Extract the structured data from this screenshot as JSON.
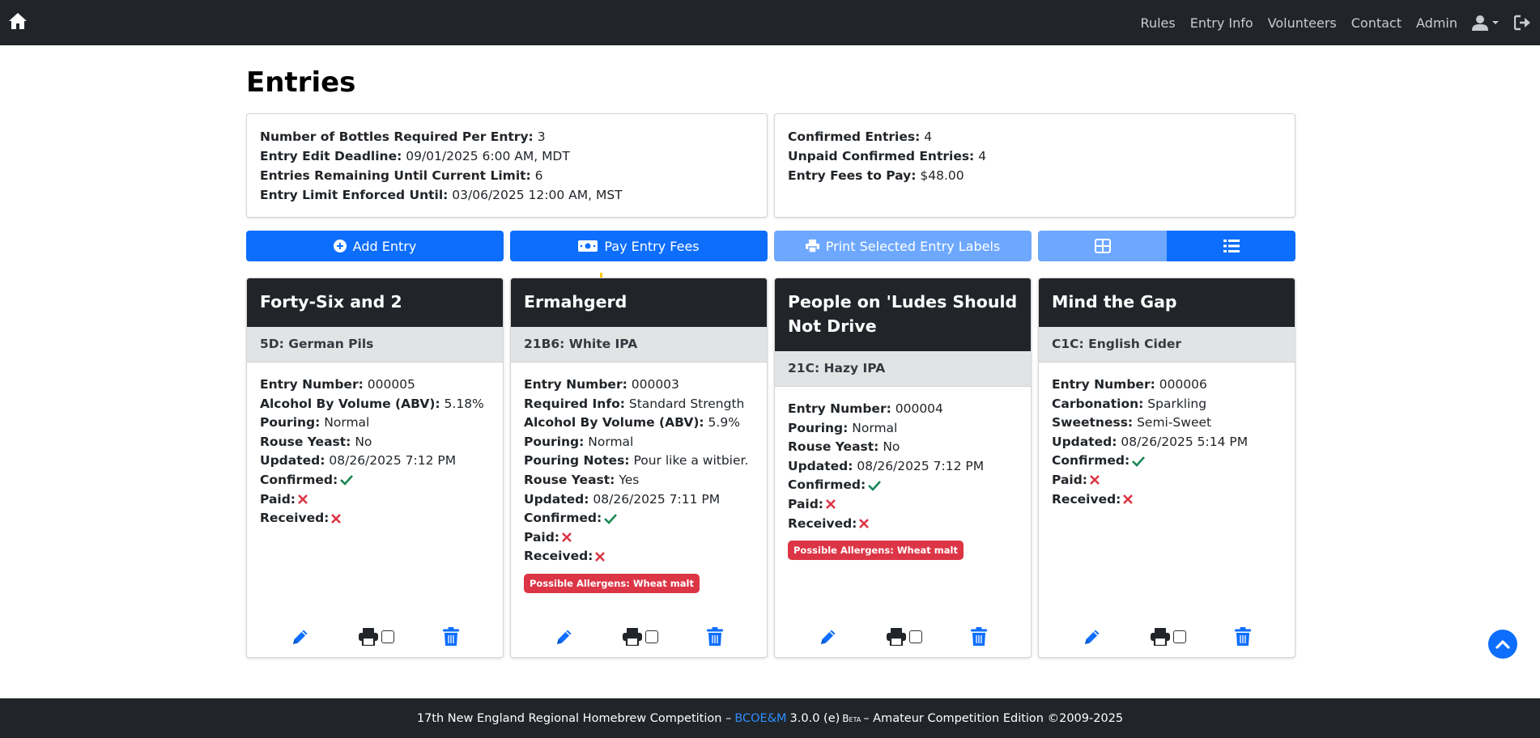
{
  "nav": {
    "links": [
      "Rules",
      "Entry Info",
      "Volunteers",
      "Contact",
      "Admin"
    ]
  },
  "page": {
    "title": "Entries"
  },
  "info_left": [
    {
      "label": "Number of Bottles Required Per Entry:",
      "value": "3"
    },
    {
      "label": "Entry Edit Deadline:",
      "value": "09/01/2025 6:00 AM, MDT"
    },
    {
      "label": "Entries Remaining Until Current Limit:",
      "value": "6"
    },
    {
      "label": "Entry Limit Enforced Until:",
      "value": "03/06/2025 12:00 AM, MST"
    }
  ],
  "info_right": [
    {
      "label": "Confirmed Entries:",
      "value": "4"
    },
    {
      "label": "Unpaid Confirmed Entries:",
      "value": "4"
    },
    {
      "label": "Entry Fees to Pay:",
      "value": "$48.00"
    }
  ],
  "actions": {
    "add_entry": "Add Entry",
    "pay_fees": "Pay Entry Fees",
    "print_labels": "Print Selected Entry Labels"
  },
  "cards": [
    {
      "name": "Forty-Six and 2",
      "style": "5D: German Pils",
      "fields": [
        {
          "label": "Entry Number:",
          "value": "000005"
        },
        {
          "label": "Alcohol By Volume (ABV):",
          "value": "5.18%"
        },
        {
          "label": "Pouring:",
          "value": "Normal"
        },
        {
          "label": "Rouse Yeast:",
          "value": "No"
        },
        {
          "label": "Updated:",
          "value": "08/26/2025 7:12 PM"
        },
        {
          "label": "Confirmed:",
          "status": "yes"
        },
        {
          "label": "Paid:",
          "status": "no"
        },
        {
          "label": "Received:",
          "status": "no"
        }
      ],
      "allergen": ""
    },
    {
      "name": "Ermahgerd",
      "style": "21B6: White IPA",
      "fields": [
        {
          "label": "Entry Number:",
          "value": "000003"
        },
        {
          "label": "Required Info:",
          "value": "Standard Strength"
        },
        {
          "label": "Alcohol By Volume (ABV):",
          "value": "5.9%"
        },
        {
          "label": "Pouring:",
          "value": "Normal"
        },
        {
          "label": "Pouring Notes:",
          "value": "Pour like a witbier."
        },
        {
          "label": "Rouse Yeast:",
          "value": "Yes"
        },
        {
          "label": "Updated:",
          "value": "08/26/2025 7:11 PM"
        },
        {
          "label": "Confirmed:",
          "status": "yes"
        },
        {
          "label": "Paid:",
          "status": "no"
        },
        {
          "label": "Received:",
          "status": "no"
        }
      ],
      "allergen": "Possible Allergens: Wheat malt"
    },
    {
      "name": "People on 'Ludes Should Not Drive",
      "style": "21C: Hazy IPA",
      "fields": [
        {
          "label": "Entry Number:",
          "value": "000004"
        },
        {
          "label": "Pouring:",
          "value": "Normal"
        },
        {
          "label": "Rouse Yeast:",
          "value": "No"
        },
        {
          "label": "Updated:",
          "value": "08/26/2025 7:12 PM"
        },
        {
          "label": "Confirmed:",
          "status": "yes"
        },
        {
          "label": "Paid:",
          "status": "no"
        },
        {
          "label": "Received:",
          "status": "no"
        }
      ],
      "allergen": "Possible Allergens: Wheat malt"
    },
    {
      "name": "Mind the Gap",
      "style": "C1C: English Cider",
      "fields": [
        {
          "label": "Entry Number:",
          "value": "000006"
        },
        {
          "label": "Carbonation:",
          "value": "Sparkling"
        },
        {
          "label": "Sweetness:",
          "value": "Semi-Sweet"
        },
        {
          "label": "Updated:",
          "value": "08/26/2025 5:14 PM"
        },
        {
          "label": "Confirmed:",
          "status": "yes"
        },
        {
          "label": "Paid:",
          "status": "no"
        },
        {
          "label": "Received:",
          "status": "no"
        }
      ],
      "allergen": ""
    }
  ],
  "footer": {
    "prefix": "17th New England Regional Homebrew Competition –",
    "link": "BCOE&M",
    "version": "3.0.0 (e)",
    "beta": "Beta",
    "suffix": "– Amateur Competition Edition ©2009-2025"
  },
  "colors": {
    "navbar": "#212529",
    "primary": "#0d6efd",
    "primary_light": "#6ea8fe",
    "success": "#198754",
    "danger": "#dc3545"
  },
  "icons": {
    "home": "home-icon",
    "user": "user-icon",
    "logout": "logout-icon",
    "add": "plus-circle-icon",
    "pay": "money-bill-icon",
    "print": "print-icon",
    "grid": "grid-icon",
    "list": "list-icon",
    "edit": "pencil-icon",
    "delete": "trash-icon",
    "check": "check-icon",
    "cross": "x-icon",
    "scroll_top": "chevron-up-icon"
  }
}
